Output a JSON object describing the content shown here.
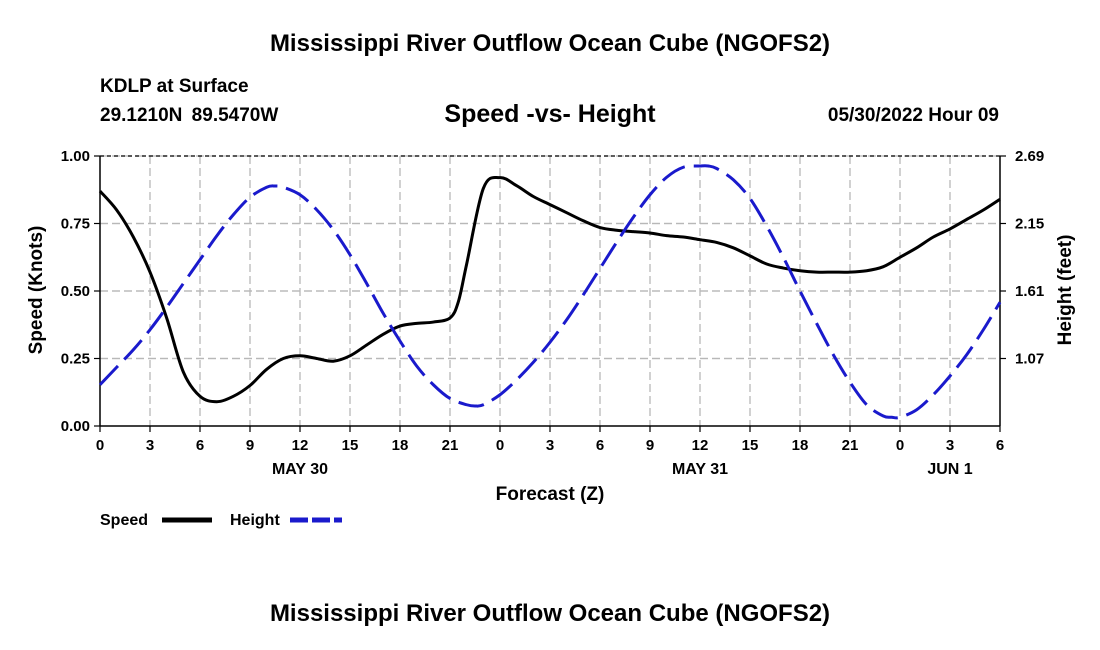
{
  "header": {
    "title": "Mississippi River Outflow Ocean Cube (NGOFS2)",
    "station": "KDLP at Surface",
    "coords": "29.1210N  89.5470W",
    "subtitle": "Speed -vs- Height",
    "datetime": "05/30/2022 Hour 09"
  },
  "footer": {
    "title": "Mississippi River Outflow Ocean Cube (NGOFS2)"
  },
  "chart_data": {
    "type": "line",
    "xlabel": "Forecast (Z)",
    "ylabel_left": "Speed (Knots)",
    "ylabel_right": "Height (feet)",
    "x_range_hours": [
      0,
      54
    ],
    "x_tick_labels": [
      "0",
      "3",
      "6",
      "9",
      "12",
      "15",
      "18",
      "21",
      "0",
      "3",
      "6",
      "9",
      "12",
      "15",
      "18",
      "21",
      "0",
      "3",
      "6"
    ],
    "date_labels": [
      {
        "label": "MAY 30",
        "hour": 12
      },
      {
        "label": "MAY 31",
        "hour": 36
      },
      {
        "label": "JUN 1",
        "hour": 51
      }
    ],
    "y_left_range": [
      0,
      1
    ],
    "y_left_ticks": [
      "0.00",
      "0.25",
      "0.50",
      "0.75",
      "1.00"
    ],
    "y_right_range": [
      0.53,
      2.69
    ],
    "y_right_ticks": [
      {
        "label": "1.07",
        "value": 1.07
      },
      {
        "label": "1.61",
        "value": 1.61
      },
      {
        "label": "2.15",
        "value": 2.15
      },
      {
        "label": "2.69",
        "value": 2.69
      }
    ],
    "grid": true,
    "legend": [
      {
        "name": "Speed",
        "color": "#000000",
        "style": "solid"
      },
      {
        "name": "Height",
        "color": "#1a1acc",
        "style": "dashed"
      }
    ],
    "series": [
      {
        "name": "Speed",
        "axis": "left",
        "color": "#000000",
        "x": [
          0,
          1,
          2,
          3,
          4,
          5,
          6,
          7,
          8,
          9,
          10,
          11,
          12,
          13,
          14,
          15,
          16,
          17,
          18,
          19,
          20,
          21,
          21.5,
          22,
          23,
          24,
          25,
          26,
          27,
          28,
          29,
          30,
          31,
          32,
          33,
          34,
          35,
          36,
          37,
          38,
          39,
          40,
          41,
          42,
          43,
          44,
          45,
          46,
          47,
          48,
          49,
          50,
          51,
          52,
          53,
          54
        ],
        "values": [
          0.87,
          0.8,
          0.7,
          0.57,
          0.4,
          0.2,
          0.11,
          0.09,
          0.11,
          0.15,
          0.21,
          0.25,
          0.26,
          0.25,
          0.24,
          0.26,
          0.3,
          0.34,
          0.37,
          0.38,
          0.385,
          0.4,
          0.46,
          0.6,
          0.88,
          0.92,
          0.89,
          0.85,
          0.82,
          0.79,
          0.76,
          0.735,
          0.725,
          0.72,
          0.715,
          0.705,
          0.7,
          0.69,
          0.68,
          0.66,
          0.63,
          0.6,
          0.585,
          0.575,
          0.57,
          0.57,
          0.57,
          0.575,
          0.59,
          0.625,
          0.66,
          0.7,
          0.73,
          0.765,
          0.8,
          0.84
        ]
      },
      {
        "name": "Height",
        "axis": "right",
        "color": "#1a1acc",
        "x": [
          0,
          1,
          2,
          3,
          4,
          5,
          6,
          7,
          8,
          9,
          10,
          10.5,
          11,
          12,
          13,
          14,
          15,
          16,
          17,
          18,
          19,
          20,
          21,
          22,
          22.5,
          23,
          24,
          25,
          26,
          27,
          28,
          29,
          30,
          31,
          32,
          33,
          34,
          35,
          36,
          36.5,
          37,
          38,
          39,
          40,
          41,
          42,
          43,
          44,
          45,
          46,
          47,
          47.5,
          48,
          49,
          50,
          51,
          52,
          53,
          54
        ],
        "values": [
          0.86,
          1.0,
          1.14,
          1.3,
          1.48,
          1.67,
          1.86,
          2.05,
          2.22,
          2.36,
          2.44,
          2.45,
          2.44,
          2.38,
          2.26,
          2.1,
          1.9,
          1.67,
          1.43,
          1.21,
          1.01,
          0.86,
          0.75,
          0.7,
          0.69,
          0.7,
          0.78,
          0.9,
          1.04,
          1.2,
          1.38,
          1.58,
          1.79,
          2.0,
          2.2,
          2.38,
          2.52,
          2.6,
          2.61,
          2.61,
          2.59,
          2.5,
          2.35,
          2.13,
          1.88,
          1.61,
          1.35,
          1.1,
          0.88,
          0.7,
          0.61,
          0.6,
          0.6,
          0.66,
          0.78,
          0.93,
          1.1,
          1.3,
          1.52
        ]
      }
    ]
  }
}
